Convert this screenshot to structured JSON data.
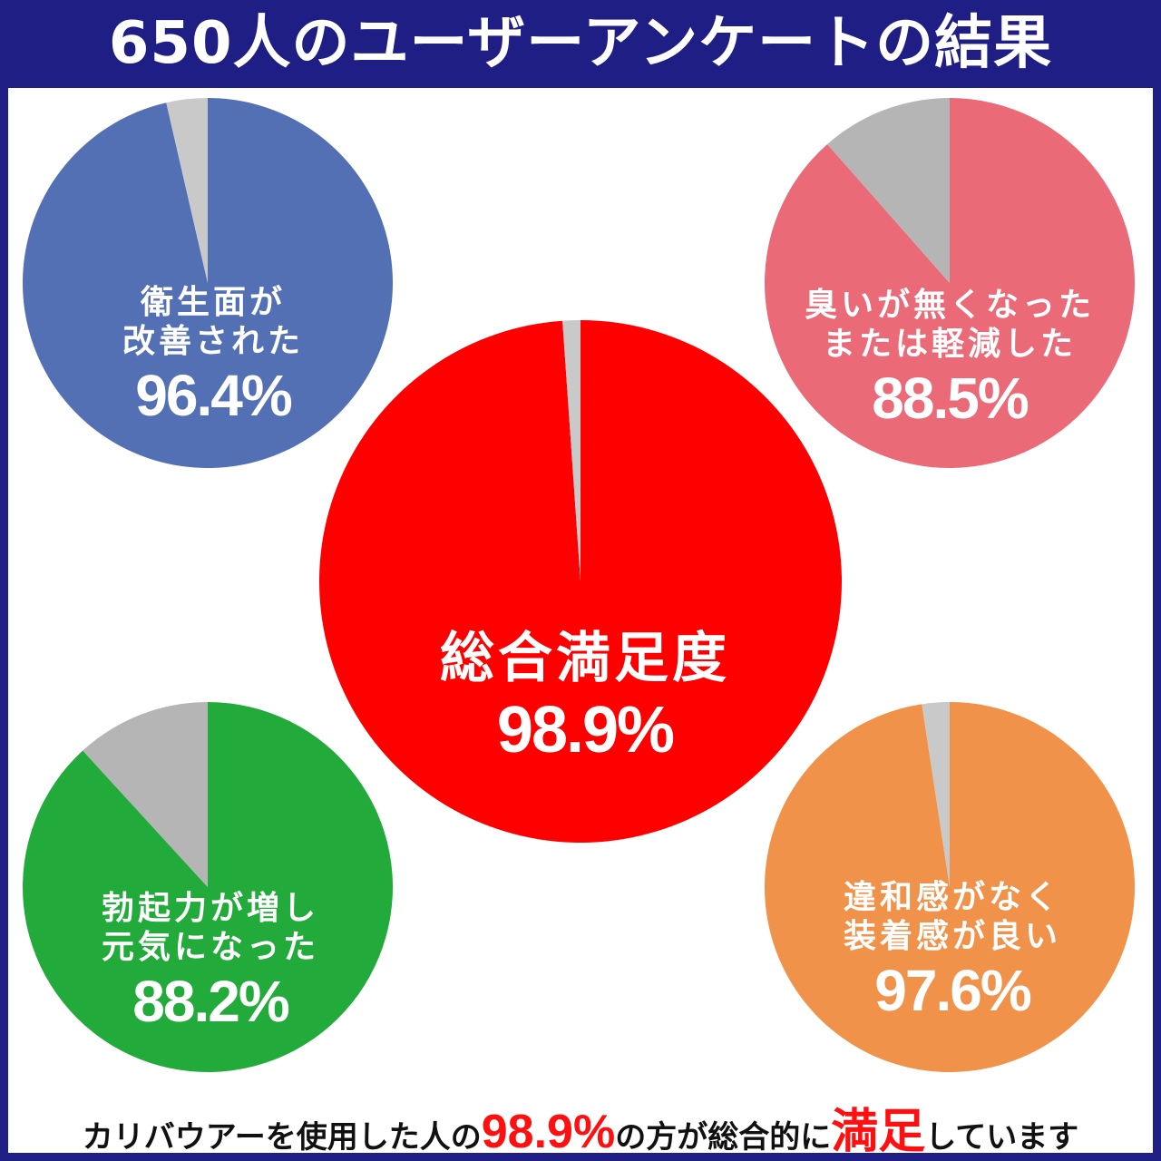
{
  "title": "650人のユーザーアンケートの結果",
  "chart_data": [
    {
      "type": "pie",
      "label_lines": [
        "衛生面が",
        "改善された"
      ],
      "value_label": "96.4%",
      "values": [
        96.4,
        3.6
      ],
      "colors": [
        "#5470b4",
        "#c9c9c9"
      ]
    },
    {
      "type": "pie",
      "label_lines": [
        "臭いが無くなった",
        "または軽減した"
      ],
      "value_label": "88.5%",
      "values": [
        88.5,
        11.5
      ],
      "colors": [
        "#ea6a78",
        "#b5b5b5"
      ]
    },
    {
      "type": "pie",
      "label_lines": [
        "総合満足度"
      ],
      "value_label": "98.9%",
      "values": [
        98.9,
        1.1
      ],
      "colors": [
        "#ff0000",
        "#c9c9c9"
      ]
    },
    {
      "type": "pie",
      "label_lines": [
        "勃起力が増し",
        "元気になった"
      ],
      "value_label": "88.2%",
      "values": [
        88.2,
        11.8
      ],
      "colors": [
        "#22aa3a",
        "#b5b5b5"
      ]
    },
    {
      "type": "pie",
      "label_lines": [
        "違和感がなく",
        "装着感が良い"
      ],
      "value_label": "97.6%",
      "values": [
        97.6,
        2.4
      ],
      "colors": [
        "#f0924a",
        "#c9c9c9"
      ]
    }
  ],
  "footer": {
    "part1": "カリバウアーを使用した人の",
    "highlight1": "98.9%",
    "part2": "の方が総合的に",
    "highlight2": "満足",
    "part3": "しています"
  }
}
